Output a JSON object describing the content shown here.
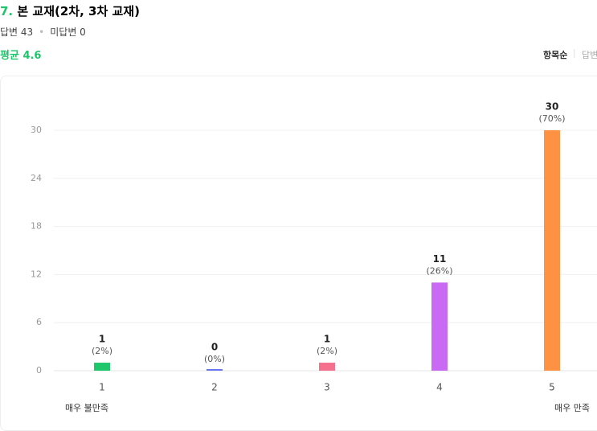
{
  "header": {
    "number": "7.",
    "title": "본 교재(2차, 3차 교재)",
    "answered": "답변 43",
    "unanswered": "미답변 0",
    "average": "평균 4.6",
    "sort_options": [
      "항목순",
      "답변"
    ]
  },
  "chart_data": {
    "type": "bar",
    "categories": [
      "1",
      "2",
      "3",
      "4",
      "5"
    ],
    "values": [
      1,
      0,
      1,
      11,
      30
    ],
    "percent_labels": [
      "(2%)",
      "(0%)",
      "(2%)",
      "(26%)",
      "(70%)"
    ],
    "colors": [
      "#1ec66b",
      "#6a75f2",
      "#f4708c",
      "#c96af5",
      "#ff9142"
    ],
    "ylim": [
      0,
      30
    ],
    "yticks": [
      0,
      6,
      12,
      18,
      24,
      30
    ],
    "grid": true,
    "scale_labels": {
      "low": "매우 불만족",
      "high": "매우 만족"
    }
  }
}
